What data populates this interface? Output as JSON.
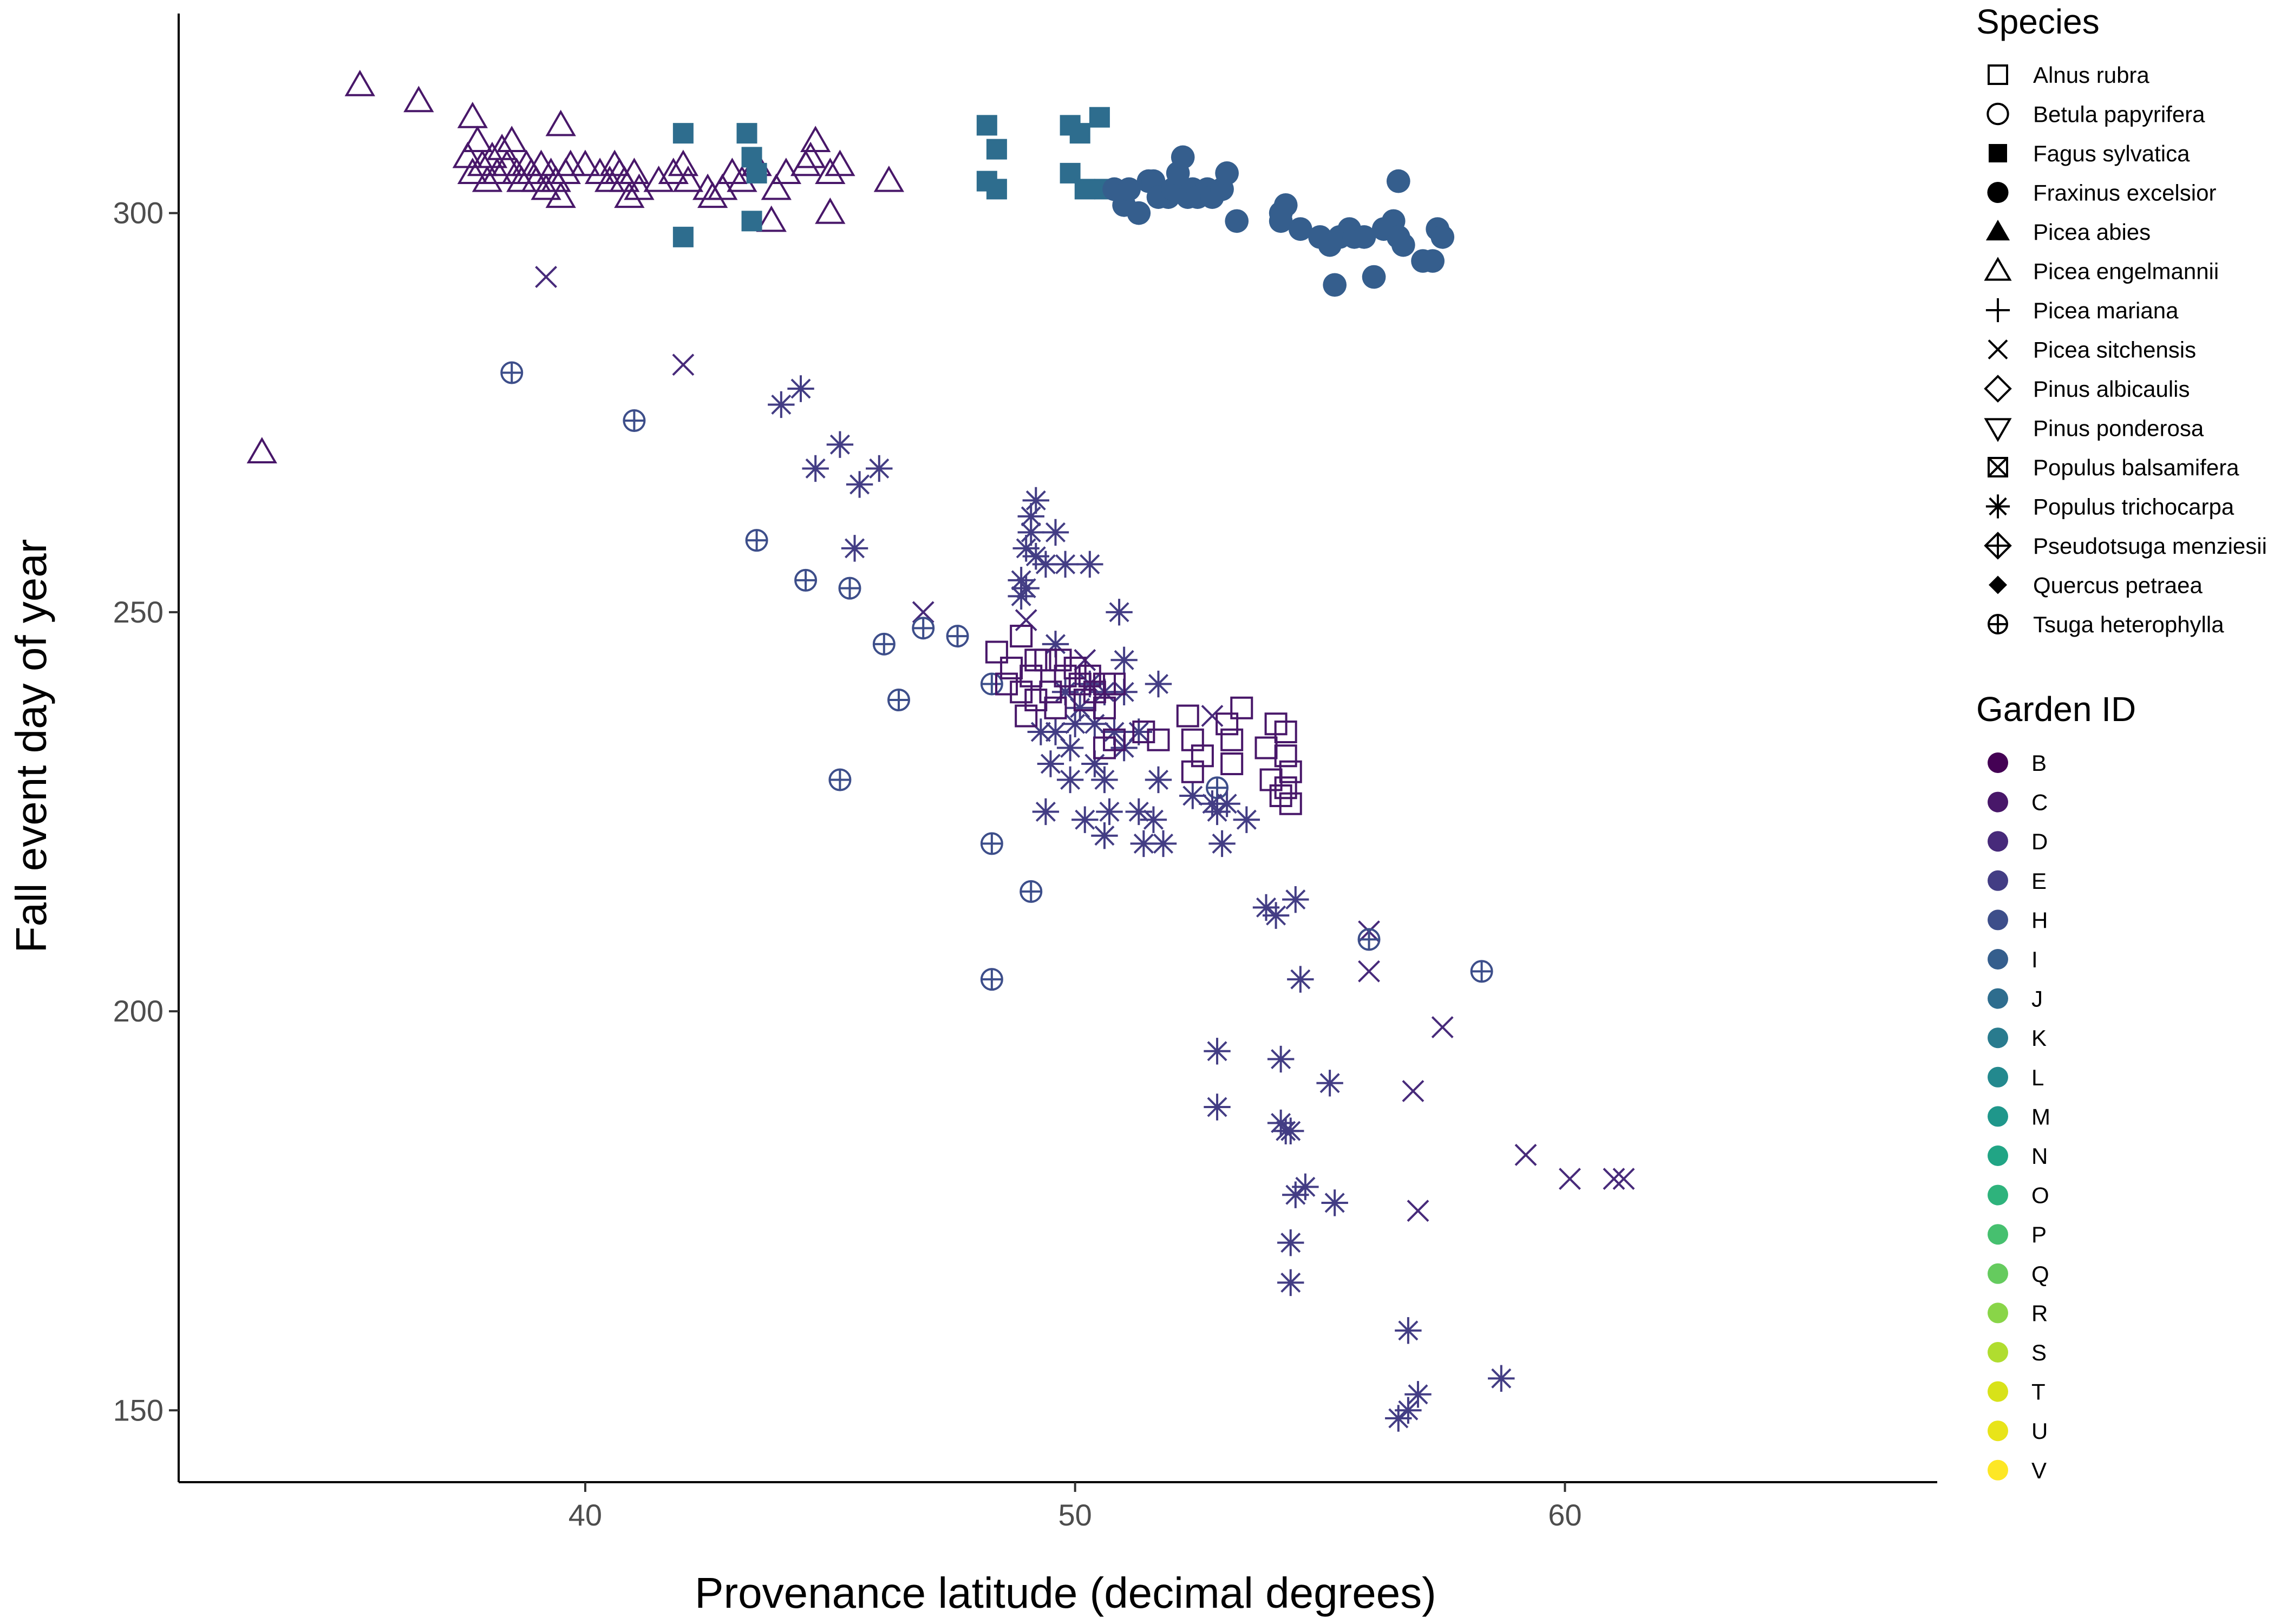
{
  "chart_data": {
    "type": "scatter",
    "xlabel": "Provenance latitude (decimal degrees)",
    "ylabel": "Fall event day of year",
    "xlim": [
      31.7,
      67.6
    ],
    "ylim": [
      141,
      325
    ],
    "x_ticks": [
      40,
      50,
      60
    ],
    "y_ticks": [
      150,
      200,
      250,
      300
    ],
    "grid": false,
    "legend_position": "right",
    "shape_legend": {
      "title": "Species",
      "entries": [
        {
          "name": "Alnus rubra",
          "shape": "square-open"
        },
        {
          "name": "Betula papyrifera",
          "shape": "circle-open"
        },
        {
          "name": "Fagus sylvatica",
          "shape": "square-filled"
        },
        {
          "name": "Fraxinus excelsior",
          "shape": "circle-filled"
        },
        {
          "name": "Picea abies",
          "shape": "triangle-filled"
        },
        {
          "name": "Picea engelmannii",
          "shape": "triangle-open"
        },
        {
          "name": "Picea mariana",
          "shape": "plus"
        },
        {
          "name": "Picea sitchensis",
          "shape": "cross"
        },
        {
          "name": "Pinus albicaulis",
          "shape": "diamond-open"
        },
        {
          "name": "Pinus ponderosa",
          "shape": "triangle-down-open"
        },
        {
          "name": "Populus balsamifera",
          "shape": "square-cross"
        },
        {
          "name": "Populus trichocarpa",
          "shape": "asterisk"
        },
        {
          "name": "Pseudotsuga menziesii",
          "shape": "diamond-plus"
        },
        {
          "name": "Quercus petraea",
          "shape": "diamond-filled"
        },
        {
          "name": "Tsuga heterophylla",
          "shape": "circle-plus"
        }
      ]
    },
    "color_legend": {
      "title": "Garden ID",
      "entries": [
        {
          "name": "B",
          "color": "#440154"
        },
        {
          "name": "C",
          "color": "#481769"
        },
        {
          "name": "D",
          "color": "#472A7A"
        },
        {
          "name": "E",
          "color": "#433D84"
        },
        {
          "name": "H",
          "color": "#3D4E8A"
        },
        {
          "name": "I",
          "color": "#355E8D"
        },
        {
          "name": "J",
          "color": "#2E6D8E"
        },
        {
          "name": "K",
          "color": "#297B8E"
        },
        {
          "name": "L",
          "color": "#23898E"
        },
        {
          "name": "M",
          "color": "#1F978B"
        },
        {
          "name": "N",
          "color": "#21A585"
        },
        {
          "name": "O",
          "color": "#2EB37C"
        },
        {
          "name": "P",
          "color": "#46C06F"
        },
        {
          "name": "Q",
          "color": "#65CB5E"
        },
        {
          "name": "R",
          "color": "#89D548"
        },
        {
          "name": "S",
          "color": "#B0DD2F"
        },
        {
          "name": "T",
          "color": "#D8E219"
        },
        {
          "name": "U",
          "color": "#E8E419"
        },
        {
          "name": "V",
          "color": "#FDE725"
        }
      ]
    },
    "series": [
      {
        "name": "Picea engelmannii",
        "garden": "C",
        "shape": "triangle-open",
        "points": [
          [
            33.4,
            270
          ],
          [
            35.4,
            316
          ],
          [
            36.6,
            314
          ],
          [
            37.7,
            312
          ],
          [
            37.6,
            307
          ],
          [
            37.7,
            305
          ],
          [
            37.8,
            309
          ],
          [
            37.9,
            306
          ],
          [
            38.0,
            304
          ],
          [
            38.1,
            307
          ],
          [
            38.2,
            305
          ],
          [
            38.3,
            308
          ],
          [
            38.4,
            306
          ],
          [
            38.5,
            309
          ],
          [
            38.6,
            305
          ],
          [
            38.7,
            304
          ],
          [
            38.8,
            306
          ],
          [
            38.9,
            305
          ],
          [
            39.0,
            304
          ],
          [
            39.1,
            306
          ],
          [
            39.2,
            303
          ],
          [
            39.3,
            305
          ],
          [
            39.4,
            304
          ],
          [
            39.5,
            311
          ],
          [
            39.5,
            302
          ],
          [
            39.6,
            305
          ],
          [
            39.7,
            306
          ],
          [
            40.0,
            306
          ],
          [
            40.3,
            305
          ],
          [
            40.5,
            304
          ],
          [
            40.6,
            306
          ],
          [
            40.7,
            305
          ],
          [
            40.8,
            304
          ],
          [
            40.9,
            302
          ],
          [
            41.0,
            305
          ],
          [
            41.1,
            303
          ],
          [
            41.5,
            304
          ],
          [
            41.8,
            305
          ],
          [
            42.0,
            306
          ],
          [
            42.1,
            304
          ],
          [
            42.5,
            303
          ],
          [
            42.6,
            302
          ],
          [
            42.8,
            303
          ],
          [
            43.0,
            305
          ],
          [
            43.2,
            304
          ],
          [
            43.5,
            306
          ],
          [
            43.8,
            299
          ],
          [
            43.9,
            303
          ],
          [
            44.1,
            305
          ],
          [
            44.5,
            306
          ],
          [
            44.6,
            307
          ],
          [
            44.7,
            309
          ],
          [
            45.0,
            305
          ],
          [
            45.0,
            300
          ],
          [
            45.2,
            306
          ],
          [
            46.2,
            304
          ]
        ]
      },
      {
        "name": "Fagus sylvatica",
        "garden": "J",
        "shape": "square-filled",
        "points": [
          [
            42.0,
            297
          ],
          [
            42.0,
            310
          ],
          [
            43.3,
            310
          ],
          [
            43.4,
            307
          ],
          [
            43.4,
            299
          ],
          [
            43.5,
            305
          ],
          [
            48.2,
            311
          ],
          [
            48.2,
            304
          ],
          [
            48.4,
            308
          ],
          [
            48.4,
            303
          ],
          [
            49.9,
            311
          ],
          [
            49.9,
            305
          ],
          [
            50.1,
            310
          ],
          [
            50.2,
            303
          ],
          [
            50.5,
            312
          ],
          [
            50.6,
            303
          ]
        ]
      },
      {
        "name": "Fraxinus excelsior",
        "garden": "I",
        "shape": "circle-filled",
        "points": [
          [
            50.8,
            303
          ],
          [
            51.0,
            301
          ],
          [
            51.1,
            303
          ],
          [
            51.3,
            300
          ],
          [
            51.5,
            304
          ],
          [
            51.6,
            304
          ],
          [
            51.7,
            302
          ],
          [
            51.9,
            302
          ],
          [
            52.0,
            303
          ],
          [
            52.1,
            305
          ],
          [
            52.2,
            307
          ],
          [
            52.3,
            302
          ],
          [
            52.4,
            303
          ],
          [
            52.5,
            302
          ],
          [
            52.7,
            303
          ],
          [
            52.8,
            302
          ],
          [
            53.0,
            303
          ],
          [
            53.1,
            305
          ],
          [
            53.3,
            299
          ],
          [
            54.2,
            300
          ],
          [
            54.2,
            299
          ],
          [
            54.3,
            301
          ],
          [
            54.6,
            298
          ],
          [
            55.0,
            297
          ],
          [
            55.2,
            296
          ],
          [
            55.3,
            291
          ],
          [
            55.4,
            297
          ],
          [
            55.6,
            298
          ],
          [
            55.7,
            297
          ],
          [
            55.9,
            297
          ],
          [
            56.1,
            292
          ],
          [
            56.3,
            298
          ],
          [
            56.5,
            299
          ],
          [
            56.6,
            304
          ],
          [
            56.6,
            297
          ],
          [
            56.7,
            296
          ],
          [
            57.1,
            294
          ],
          [
            57.3,
            294
          ],
          [
            57.4,
            298
          ],
          [
            57.5,
            297
          ]
        ]
      },
      {
        "name": "Picea sitchensis",
        "garden": "D",
        "shape": "cross",
        "points": [
          [
            39.2,
            292
          ],
          [
            42.0,
            281
          ],
          [
            46.9,
            250
          ],
          [
            49.0,
            249
          ],
          [
            50.2,
            244
          ],
          [
            52.8,
            237
          ],
          [
            56.0,
            210
          ],
          [
            56.0,
            205
          ],
          [
            56.9,
            190
          ],
          [
            57.0,
            175
          ],
          [
            57.5,
            198
          ],
          [
            59.2,
            182
          ],
          [
            60.1,
            179
          ],
          [
            61.0,
            179
          ],
          [
            61.2,
            179
          ]
        ]
      },
      {
        "name": "Tsuga heterophylla",
        "garden": "H",
        "shape": "circle-plus",
        "points": [
          [
            38.5,
            280
          ],
          [
            41.0,
            274
          ],
          [
            43.5,
            259
          ],
          [
            44.5,
            254
          ],
          [
            45.2,
            229
          ],
          [
            45.4,
            253
          ],
          [
            46.1,
            246
          ],
          [
            46.4,
            239
          ],
          [
            46.9,
            248
          ],
          [
            47.6,
            247
          ],
          [
            48.3,
            241
          ],
          [
            48.3,
            221
          ],
          [
            48.3,
            204
          ],
          [
            49.1,
            215
          ],
          [
            52.9,
            228
          ],
          [
            56.0,
            209
          ],
          [
            58.3,
            205
          ]
        ]
      },
      {
        "name": "Populus trichocarpa",
        "garden": "E",
        "shape": "asterisk",
        "points": [
          [
            44.0,
            276
          ],
          [
            44.4,
            278
          ],
          [
            44.7,
            268
          ],
          [
            45.2,
            271
          ],
          [
            45.6,
            266
          ],
          [
            46.0,
            268
          ],
          [
            45.5,
            258
          ],
          [
            49.2,
            264
          ],
          [
            49.1,
            262
          ],
          [
            49.1,
            260
          ],
          [
            49.0,
            258
          ],
          [
            49.6,
            260
          ],
          [
            49.2,
            257
          ],
          [
            49.4,
            256
          ],
          [
            48.9,
            254
          ],
          [
            48.9,
            252
          ],
          [
            49.0,
            253
          ],
          [
            49.8,
            256
          ],
          [
            50.3,
            256
          ],
          [
            49.6,
            246
          ],
          [
            49.8,
            240
          ],
          [
            50.1,
            238
          ],
          [
            50.3,
            241
          ],
          [
            50.6,
            240
          ],
          [
            50.0,
            236
          ],
          [
            50.4,
            236
          ],
          [
            50.8,
            235
          ],
          [
            49.3,
            235
          ],
          [
            49.6,
            235
          ],
          [
            49.9,
            233
          ],
          [
            49.5,
            231
          ],
          [
            49.9,
            229
          ],
          [
            50.4,
            231
          ],
          [
            50.6,
            229
          ],
          [
            51.0,
            233
          ],
          [
            51.3,
            235
          ],
          [
            49.4,
            225
          ],
          [
            50.2,
            224
          ],
          [
            50.7,
            225
          ],
          [
            50.6,
            222
          ],
          [
            51.3,
            225
          ],
          [
            51.6,
            224
          ],
          [
            51.4,
            221
          ],
          [
            51.8,
            221
          ],
          [
            50.9,
            250
          ],
          [
            51.0,
            244
          ],
          [
            51.0,
            240
          ],
          [
            51.7,
            241
          ],
          [
            51.7,
            229
          ],
          [
            52.4,
            227
          ],
          [
            52.8,
            226
          ],
          [
            52.9,
            225
          ],
          [
            53.1,
            226
          ],
          [
            53.0,
            221
          ],
          [
            53.5,
            224
          ],
          [
            53.9,
            213
          ],
          [
            54.1,
            212
          ],
          [
            54.5,
            214
          ],
          [
            54.6,
            204
          ],
          [
            52.9,
            195
          ],
          [
            52.9,
            188
          ],
          [
            54.2,
            194
          ],
          [
            54.2,
            186
          ],
          [
            54.3,
            185
          ],
          [
            54.4,
            185
          ],
          [
            55.2,
            191
          ],
          [
            54.5,
            177
          ],
          [
            54.7,
            178
          ],
          [
            55.3,
            176
          ],
          [
            54.4,
            171
          ],
          [
            54.4,
            166
          ],
          [
            56.8,
            160
          ],
          [
            56.6,
            149
          ],
          [
            56.8,
            150
          ],
          [
            57.0,
            152
          ],
          [
            58.7,
            154
          ]
        ]
      },
      {
        "name": "Alnus rubra",
        "garden": "C",
        "shape": "square-open",
        "points": [
          [
            48.4,
            245
          ],
          [
            48.6,
            241
          ],
          [
            48.9,
            247
          ],
          [
            48.7,
            243
          ],
          [
            48.9,
            240
          ],
          [
            49.1,
            242
          ],
          [
            49.2,
            239
          ],
          [
            49.4,
            244
          ],
          [
            49.5,
            240
          ],
          [
            49.7,
            244
          ],
          [
            49.8,
            242
          ],
          [
            49.6,
            238
          ],
          [
            50.0,
            243
          ],
          [
            50.1,
            241
          ],
          [
            50.2,
            239
          ],
          [
            50.3,
            242
          ],
          [
            50.4,
            240
          ],
          [
            50.6,
            241
          ],
          [
            50.8,
            241
          ],
          [
            50.6,
            238
          ],
          [
            50.8,
            234
          ],
          [
            50.6,
            233
          ],
          [
            51.4,
            235
          ],
          [
            49.0,
            237
          ],
          [
            49.2,
            244
          ],
          [
            51.7,
            234
          ],
          [
            52.4,
            234
          ],
          [
            52.3,
            237
          ],
          [
            52.6,
            232
          ],
          [
            53.1,
            236
          ],
          [
            53.2,
            234
          ],
          [
            53.2,
            231
          ],
          [
            53.4,
            238
          ],
          [
            52.4,
            230
          ],
          [
            53.9,
            233
          ],
          [
            54.0,
            229
          ],
          [
            54.1,
            236
          ],
          [
            54.3,
            235
          ],
          [
            54.3,
            232
          ],
          [
            54.3,
            228
          ],
          [
            54.4,
            230
          ],
          [
            54.2,
            227
          ],
          [
            54.4,
            226
          ]
        ]
      }
    ]
  }
}
